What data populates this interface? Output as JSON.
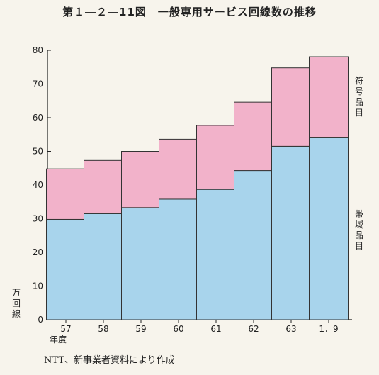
{
  "title": "第１―２―11図　一般専用サービス回線数の推移",
  "source": "NTT、新事業者資料により作成",
  "chart_data": {
    "type": "bar",
    "stacked": true,
    "categories": [
      "57",
      "58",
      "59",
      "60",
      "61",
      "62",
      "63",
      "1．9"
    ],
    "xlabel": "年度",
    "ylabel": "万回線",
    "ylim": [
      0,
      80
    ],
    "yticks": [
      0,
      10,
      20,
      30,
      40,
      50,
      60,
      70,
      80
    ],
    "grid": false,
    "series": [
      {
        "name": "帯域品目",
        "color": "#a8d4ec",
        "values": [
          29.8,
          31.5,
          33.3,
          35.8,
          38.7,
          44.3,
          51.5,
          54.2
        ]
      },
      {
        "name": "符号品目",
        "color": "#f2b2ca",
        "values": [
          15.0,
          15.8,
          16.7,
          17.8,
          19.0,
          20.3,
          23.3,
          23.9
        ]
      }
    ]
  }
}
